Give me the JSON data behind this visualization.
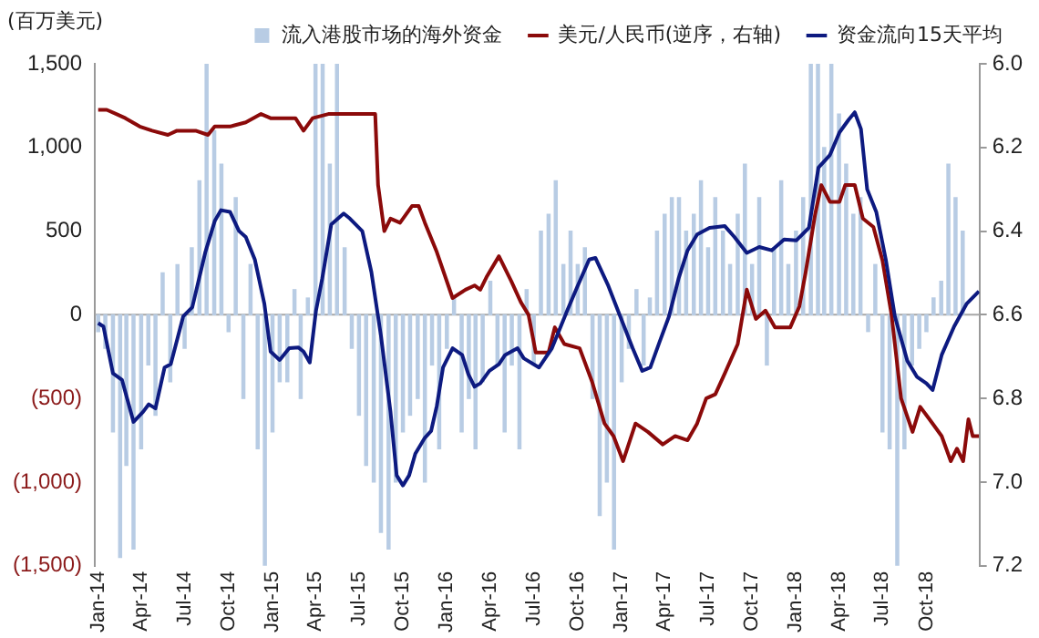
{
  "chart_data": {
    "type": "bar",
    "ylabel": "(百万美元)",
    "xlim": [
      "2013-12-25",
      "2019-01-20"
    ],
    "xticks": [
      {
        "value": "2014-01",
        "label": "Jan-14"
      },
      {
        "value": "2014-04",
        "label": "Apr-14"
      },
      {
        "value": "2014-07",
        "label": "Jul-14"
      },
      {
        "value": "2014-10",
        "label": "Oct-14"
      },
      {
        "value": "2015-01",
        "label": "Jan-15"
      },
      {
        "value": "2015-04",
        "label": "Apr-15"
      },
      {
        "value": "2015-07",
        "label": "Jul-15"
      },
      {
        "value": "2015-10",
        "label": "Oct-15"
      },
      {
        "value": "2016-01",
        "label": "Jan-16"
      },
      {
        "value": "2016-04",
        "label": "Apr-16"
      },
      {
        "value": "2016-07",
        "label": "Jul-16"
      },
      {
        "value": "2016-10",
        "label": "Oct-16"
      },
      {
        "value": "2017-01",
        "label": "Jan-17"
      },
      {
        "value": "2017-04",
        "label": "Apr-17"
      },
      {
        "value": "2017-07",
        "label": "Jul-17"
      },
      {
        "value": "2017-10",
        "label": "Oct-17"
      },
      {
        "value": "2018-01",
        "label": "Jan-18"
      },
      {
        "value": "2018-04",
        "label": "Apr-18"
      },
      {
        "value": "2018-07",
        "label": "Jul-18"
      },
      {
        "value": "2018-10",
        "label": "Oct-18"
      }
    ],
    "ylim": [
      -1500,
      1500
    ],
    "yticks": [
      {
        "value": -1500,
        "label": "(1,500)"
      },
      {
        "value": -1000,
        "label": "(1,000)"
      },
      {
        "value": -500,
        "label": "(500)"
      },
      0,
      500,
      {
        "value": 1000,
        "label": "1,000"
      },
      {
        "value": 1500,
        "label": "1,500"
      }
    ],
    "y2lim": [
      7.2,
      6.0
    ],
    "y2ticks": [
      {
        "value": 6.0,
        "label": "6.0"
      },
      {
        "value": 6.2,
        "label": "6.2"
      },
      {
        "value": 6.4,
        "label": "6.4"
      },
      {
        "value": 6.6,
        "label": "6.6"
      },
      {
        "value": 6.8,
        "label": "6.8"
      },
      {
        "value": 7.0,
        "label": "7.0"
      },
      {
        "value": 7.2,
        "label": "7.2"
      }
    ],
    "ref_lines": [
      {
        "axis": "y",
        "value": 0,
        "color": "#a6a6a6"
      }
    ],
    "legend": "top",
    "grid": false,
    "series": [
      {
        "name": "流入港股市场的海外资金",
        "color": "#b8cce4",
        "x": [
          "2014-01-01",
          "2014-01-16",
          "2014-02-01",
          "2014-02-16",
          "2014-03-01",
          "2014-03-16",
          "2014-04-01",
          "2014-04-16",
          "2014-05-01",
          "2014-05-16",
          "2014-06-01",
          "2014-06-16",
          "2014-07-01",
          "2014-07-16",
          "2014-08-01",
          "2014-08-16",
          "2014-09-01",
          "2014-09-16",
          "2014-10-01",
          "2014-10-16",
          "2014-11-01",
          "2014-11-16",
          "2014-12-01",
          "2014-12-16",
          "2015-01-01",
          "2015-01-16",
          "2015-02-01",
          "2015-02-16",
          "2015-03-01",
          "2015-03-16",
          "2015-04-01",
          "2015-04-16",
          "2015-05-01",
          "2015-05-16",
          "2015-06-01",
          "2015-06-16",
          "2015-07-01",
          "2015-07-16",
          "2015-08-01",
          "2015-08-16",
          "2015-09-01",
          "2015-09-16",
          "2015-10-01",
          "2015-10-16",
          "2015-11-01",
          "2015-11-16",
          "2015-12-01",
          "2015-12-16",
          "2016-01-01",
          "2016-01-16",
          "2016-02-01",
          "2016-02-16",
          "2016-03-01",
          "2016-03-16",
          "2016-04-01",
          "2016-04-16",
          "2016-05-01",
          "2016-05-16",
          "2016-06-01",
          "2016-06-16",
          "2016-07-01",
          "2016-07-16",
          "2016-08-01",
          "2016-08-16",
          "2016-09-01",
          "2016-09-16",
          "2016-10-01",
          "2016-10-16",
          "2016-11-01",
          "2016-11-16",
          "2016-12-01",
          "2016-12-16",
          "2017-01-01",
          "2017-01-16",
          "2017-02-01",
          "2017-02-16",
          "2017-03-01",
          "2017-03-16",
          "2017-04-01",
          "2017-04-16",
          "2017-05-01",
          "2017-05-16",
          "2017-06-01",
          "2017-06-16",
          "2017-07-01",
          "2017-07-16",
          "2017-08-01",
          "2017-08-16",
          "2017-09-01",
          "2017-09-16",
          "2017-10-01",
          "2017-10-16",
          "2017-11-01",
          "2017-11-16",
          "2017-12-01",
          "2017-12-16",
          "2018-01-01",
          "2018-01-16",
          "2018-02-01",
          "2018-02-16",
          "2018-03-01",
          "2018-03-16",
          "2018-04-01",
          "2018-04-16",
          "2018-05-01",
          "2018-05-16",
          "2018-06-01",
          "2018-06-16",
          "2018-07-01",
          "2018-07-16",
          "2018-08-01",
          "2018-08-16",
          "2018-09-01",
          "2018-09-16",
          "2018-10-01",
          "2018-10-16",
          "2018-11-01",
          "2018-11-16",
          "2018-12-01",
          "2018-12-16"
        ],
        "values": [
          -100,
          -200,
          -700,
          -1450,
          -900,
          -1400,
          -800,
          -300,
          -600,
          250,
          -400,
          300,
          -200,
          400,
          800,
          1500,
          1100,
          900,
          -100,
          700,
          -500,
          300,
          -800,
          -1500,
          -700,
          -400,
          -400,
          150,
          -500,
          100,
          1500,
          1500,
          900,
          1500,
          400,
          -200,
          -600,
          -900,
          -1000,
          -1300,
          -1400,
          -1000,
          -700,
          -600,
          -500,
          -1000,
          -300,
          -800,
          -200,
          100,
          -700,
          -500,
          -800,
          -400,
          200,
          -300,
          -700,
          -300,
          -800,
          150,
          -300,
          500,
          600,
          800,
          300,
          500,
          300,
          400,
          -500,
          -1200,
          -1000,
          -1400,
          -400,
          -200,
          150,
          -300,
          100,
          500,
          600,
          700,
          700,
          500,
          600,
          800,
          400,
          700,
          500,
          300,
          600,
          900,
          300,
          700,
          -300,
          400,
          800,
          300,
          500,
          700,
          1500,
          1500,
          1000,
          1500,
          1200,
          900,
          600,
          700,
          -100,
          300,
          -700,
          -800,
          -1500,
          -800,
          -300,
          -200,
          -100,
          100,
          200,
          900,
          700,
          500
        ]
      },
      {
        "name": "美元/人民币(逆序，右轴)",
        "type": "line",
        "axis": "y2",
        "color": "#8b0a0a",
        "x": [
          "2014-01-01",
          "2014-01-19",
          "2014-02-08",
          "2014-02-27",
          "2014-03-29",
          "2014-04-24",
          "2014-05-27",
          "2014-06-15",
          "2014-07-24",
          "2014-08-19",
          "2014-09-02",
          "2014-10-04",
          "2014-11-06",
          "2014-12-08",
          "2014-12-28",
          "2015-02-18",
          "2015-03-07",
          "2015-03-26",
          "2015-04-28",
          "2015-05-30",
          "2015-08-04",
          "2015-08-10",
          "2015-08-23",
          "2015-09-05",
          "2015-09-25",
          "2015-10-20",
          "2015-11-03",
          "2015-11-16",
          "2015-12-11",
          "2016-01-13",
          "2016-02-09",
          "2016-02-28",
          "2016-03-11",
          "2016-03-24",
          "2016-04-19",
          "2016-05-15",
          "2016-06-04",
          "2016-06-20",
          "2016-07-05",
          "2016-08-01",
          "2016-08-14",
          "2016-09-03",
          "2016-10-05",
          "2016-10-31",
          "2016-11-26",
          "2016-12-15",
          "2017-01-04",
          "2017-01-30",
          "2017-02-25",
          "2017-03-28",
          "2017-04-23",
          "2017-05-19",
          "2017-06-08",
          "2017-06-27",
          "2017-07-16",
          "2017-08-05",
          "2017-09-01",
          "2017-09-20",
          "2017-10-09",
          "2017-10-29",
          "2017-11-18",
          "2017-12-20",
          "2018-01-08",
          "2018-01-21",
          "2018-02-10",
          "2018-02-23",
          "2018-03-13",
          "2018-04-02",
          "2018-04-14",
          "2018-05-04",
          "2018-05-21",
          "2018-06-12",
          "2018-07-01",
          "2018-07-20",
          "2018-08-09",
          "2018-09-02",
          "2018-09-18",
          "2018-10-14",
          "2018-11-02",
          "2018-11-21",
          "2018-12-04",
          "2018-12-17",
          "2018-12-28",
          "2019-01-06",
          "2019-01-19"
        ],
        "values": [
          6.11,
          6.11,
          6.12,
          6.13,
          6.15,
          6.16,
          6.17,
          6.16,
          6.16,
          6.17,
          6.15,
          6.15,
          6.14,
          6.12,
          6.13,
          6.13,
          6.16,
          6.13,
          6.12,
          6.12,
          6.12,
          6.29,
          6.4,
          6.37,
          6.38,
          6.34,
          6.34,
          6.38,
          6.45,
          6.56,
          6.54,
          6.53,
          6.54,
          6.51,
          6.46,
          6.52,
          6.57,
          6.6,
          6.69,
          6.69,
          6.63,
          6.67,
          6.68,
          6.76,
          6.86,
          6.89,
          6.95,
          6.86,
          6.88,
          6.91,
          6.89,
          6.9,
          6.86,
          6.8,
          6.79,
          6.74,
          6.67,
          6.54,
          6.61,
          6.59,
          6.63,
          6.63,
          6.58,
          6.5,
          6.36,
          6.29,
          6.33,
          6.33,
          6.29,
          6.29,
          6.37,
          6.39,
          6.47,
          6.6,
          6.8,
          6.88,
          6.82,
          6.86,
          6.89,
          6.95,
          6.92,
          6.95,
          6.85,
          6.89,
          6.89
        ]
      },
      {
        "name": "资金流向15天平均",
        "type": "line",
        "color": "#0d1a80",
        "x": [
          "2014-01-01",
          "2014-01-12",
          "2014-02-01",
          "2014-02-20",
          "2014-03-16",
          "2014-04-05",
          "2014-04-17",
          "2014-05-01",
          "2014-05-20",
          "2014-06-02",
          "2014-06-28",
          "2014-07-17",
          "2014-08-13",
          "2014-09-02",
          "2014-09-15",
          "2014-10-04",
          "2014-10-23",
          "2014-11-06",
          "2014-11-25",
          "2014-12-15",
          "2014-12-28",
          "2015-01-16",
          "2015-02-05",
          "2015-02-24",
          "2015-03-07",
          "2015-03-20",
          "2015-04-02",
          "2015-04-15",
          "2015-05-04",
          "2015-05-30",
          "2015-06-12",
          "2015-07-08",
          "2015-07-27",
          "2015-08-16",
          "2015-09-05",
          "2015-09-18",
          "2015-10-01",
          "2015-10-14",
          "2015-10-27",
          "2015-11-16",
          "2015-11-29",
          "2015-12-11",
          "2015-12-24",
          "2016-01-13",
          "2016-02-02",
          "2016-02-15",
          "2016-02-28",
          "2016-03-11",
          "2016-03-30",
          "2016-04-19",
          "2016-05-02",
          "2016-05-28",
          "2016-06-10",
          "2016-07-12",
          "2016-08-08",
          "2016-09-09",
          "2016-09-29",
          "2016-10-25",
          "2016-11-07",
          "2016-12-03",
          "2016-12-29",
          "2017-01-24",
          "2017-02-13",
          "2017-03-02",
          "2017-03-21",
          "2017-04-10",
          "2017-04-30",
          "2017-05-19",
          "2017-06-08",
          "2017-07-04",
          "2017-08-05",
          "2017-08-25",
          "2017-09-20",
          "2017-10-16",
          "2017-11-11",
          "2017-12-07",
          "2018-01-02",
          "2018-01-28",
          "2018-02-17",
          "2018-03-13",
          "2018-04-02",
          "2018-04-21",
          "2018-05-04",
          "2018-05-17",
          "2018-05-30",
          "2018-06-18",
          "2018-07-08",
          "2018-07-27",
          "2018-08-22",
          "2018-09-11",
          "2018-10-01",
          "2018-10-14",
          "2018-11-02",
          "2018-11-28",
          "2018-12-24",
          "2019-01-19"
        ],
        "values": [
          -50,
          -70,
          -350,
          -390,
          -640,
          -580,
          -535,
          -560,
          -315,
          -295,
          -10,
          45,
          370,
          560,
          625,
          615,
          500,
          465,
          330,
          65,
          -220,
          -270,
          -200,
          -195,
          -220,
          -285,
          25,
          215,
          540,
          605,
          575,
          500,
          255,
          -125,
          -580,
          -960,
          -1020,
          -960,
          -830,
          -735,
          -695,
          -545,
          -315,
          -200,
          -240,
          -355,
          -430,
          -410,
          -335,
          -295,
          -240,
          -200,
          -260,
          -315,
          -200,
          25,
          160,
          330,
          340,
          180,
          -10,
          -200,
          -335,
          -315,
          -165,
          -10,
          215,
          385,
          480,
          520,
          530,
          465,
          370,
          405,
          385,
          450,
          445,
          520,
          880,
          955,
          1090,
          1165,
          1210,
          1110,
          750,
          615,
          330,
          -10,
          -275,
          -370,
          -410,
          -450,
          -240,
          -70,
          65,
          140
        ]
      }
    ]
  }
}
